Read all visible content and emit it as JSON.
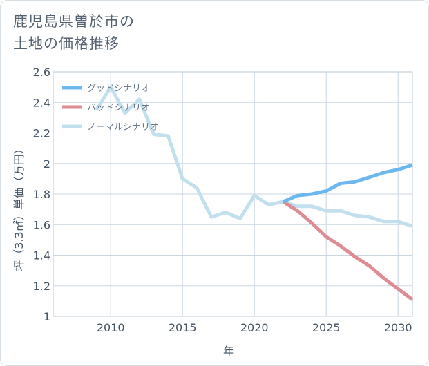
{
  "page": {
    "title_line1": "鹿児島県曽於市の",
    "title_line2": "土地の価格推移"
  },
  "chart_data": {
    "type": "line",
    "title": "鹿児島県曽於市の土地の価格推移",
    "xlabel": "年",
    "ylabel": "坪（3.3㎡）単価（万円）",
    "xlim": [
      2006,
      2031
    ],
    "ylim": [
      1,
      2.6
    ],
    "x_ticks": [
      2010,
      2015,
      2020,
      2025,
      2030
    ],
    "y_ticks": [
      1,
      1.2,
      1.4,
      1.6,
      1.8,
      2,
      2.2,
      2.4,
      2.6
    ],
    "grid": true,
    "legend_position": "top-left",
    "series": [
      {
        "name": "ノーマルシナリオ",
        "color": "#c2dfee",
        "x": [
          2009,
          2010,
          2011,
          2012,
          2013,
          2014,
          2015,
          2016,
          2017,
          2018,
          2019,
          2020,
          2021,
          2022,
          2023,
          2024,
          2025,
          2026,
          2027,
          2028,
          2029,
          2030,
          2031
        ],
        "values": [
          2.35,
          2.5,
          2.33,
          2.42,
          2.19,
          2.18,
          1.9,
          1.84,
          1.65,
          1.68,
          1.64,
          1.79,
          1.73,
          1.75,
          1.72,
          1.72,
          1.69,
          1.69,
          1.66,
          1.65,
          1.62,
          1.62,
          1.59
        ]
      },
      {
        "name": "バッドシナリオ",
        "color": "#dd8c93",
        "x": [
          2022,
          2023,
          2024,
          2025,
          2026,
          2027,
          2028,
          2029,
          2030,
          2031
        ],
        "values": [
          1.75,
          1.69,
          1.61,
          1.52,
          1.46,
          1.39,
          1.33,
          1.25,
          1.18,
          1.11
        ]
      },
      {
        "name": "グッドシナリオ",
        "color": "#6cb8ee",
        "x": [
          2022,
          2023,
          2024,
          2025,
          2026,
          2027,
          2028,
          2029,
          2030,
          2031
        ],
        "values": [
          1.75,
          1.79,
          1.8,
          1.82,
          1.87,
          1.88,
          1.91,
          1.94,
          1.96,
          1.99
        ]
      }
    ],
    "legend": [
      "グッドシナリオ",
      "バッドシナリオ",
      "ノーマルシナリオ"
    ]
  }
}
